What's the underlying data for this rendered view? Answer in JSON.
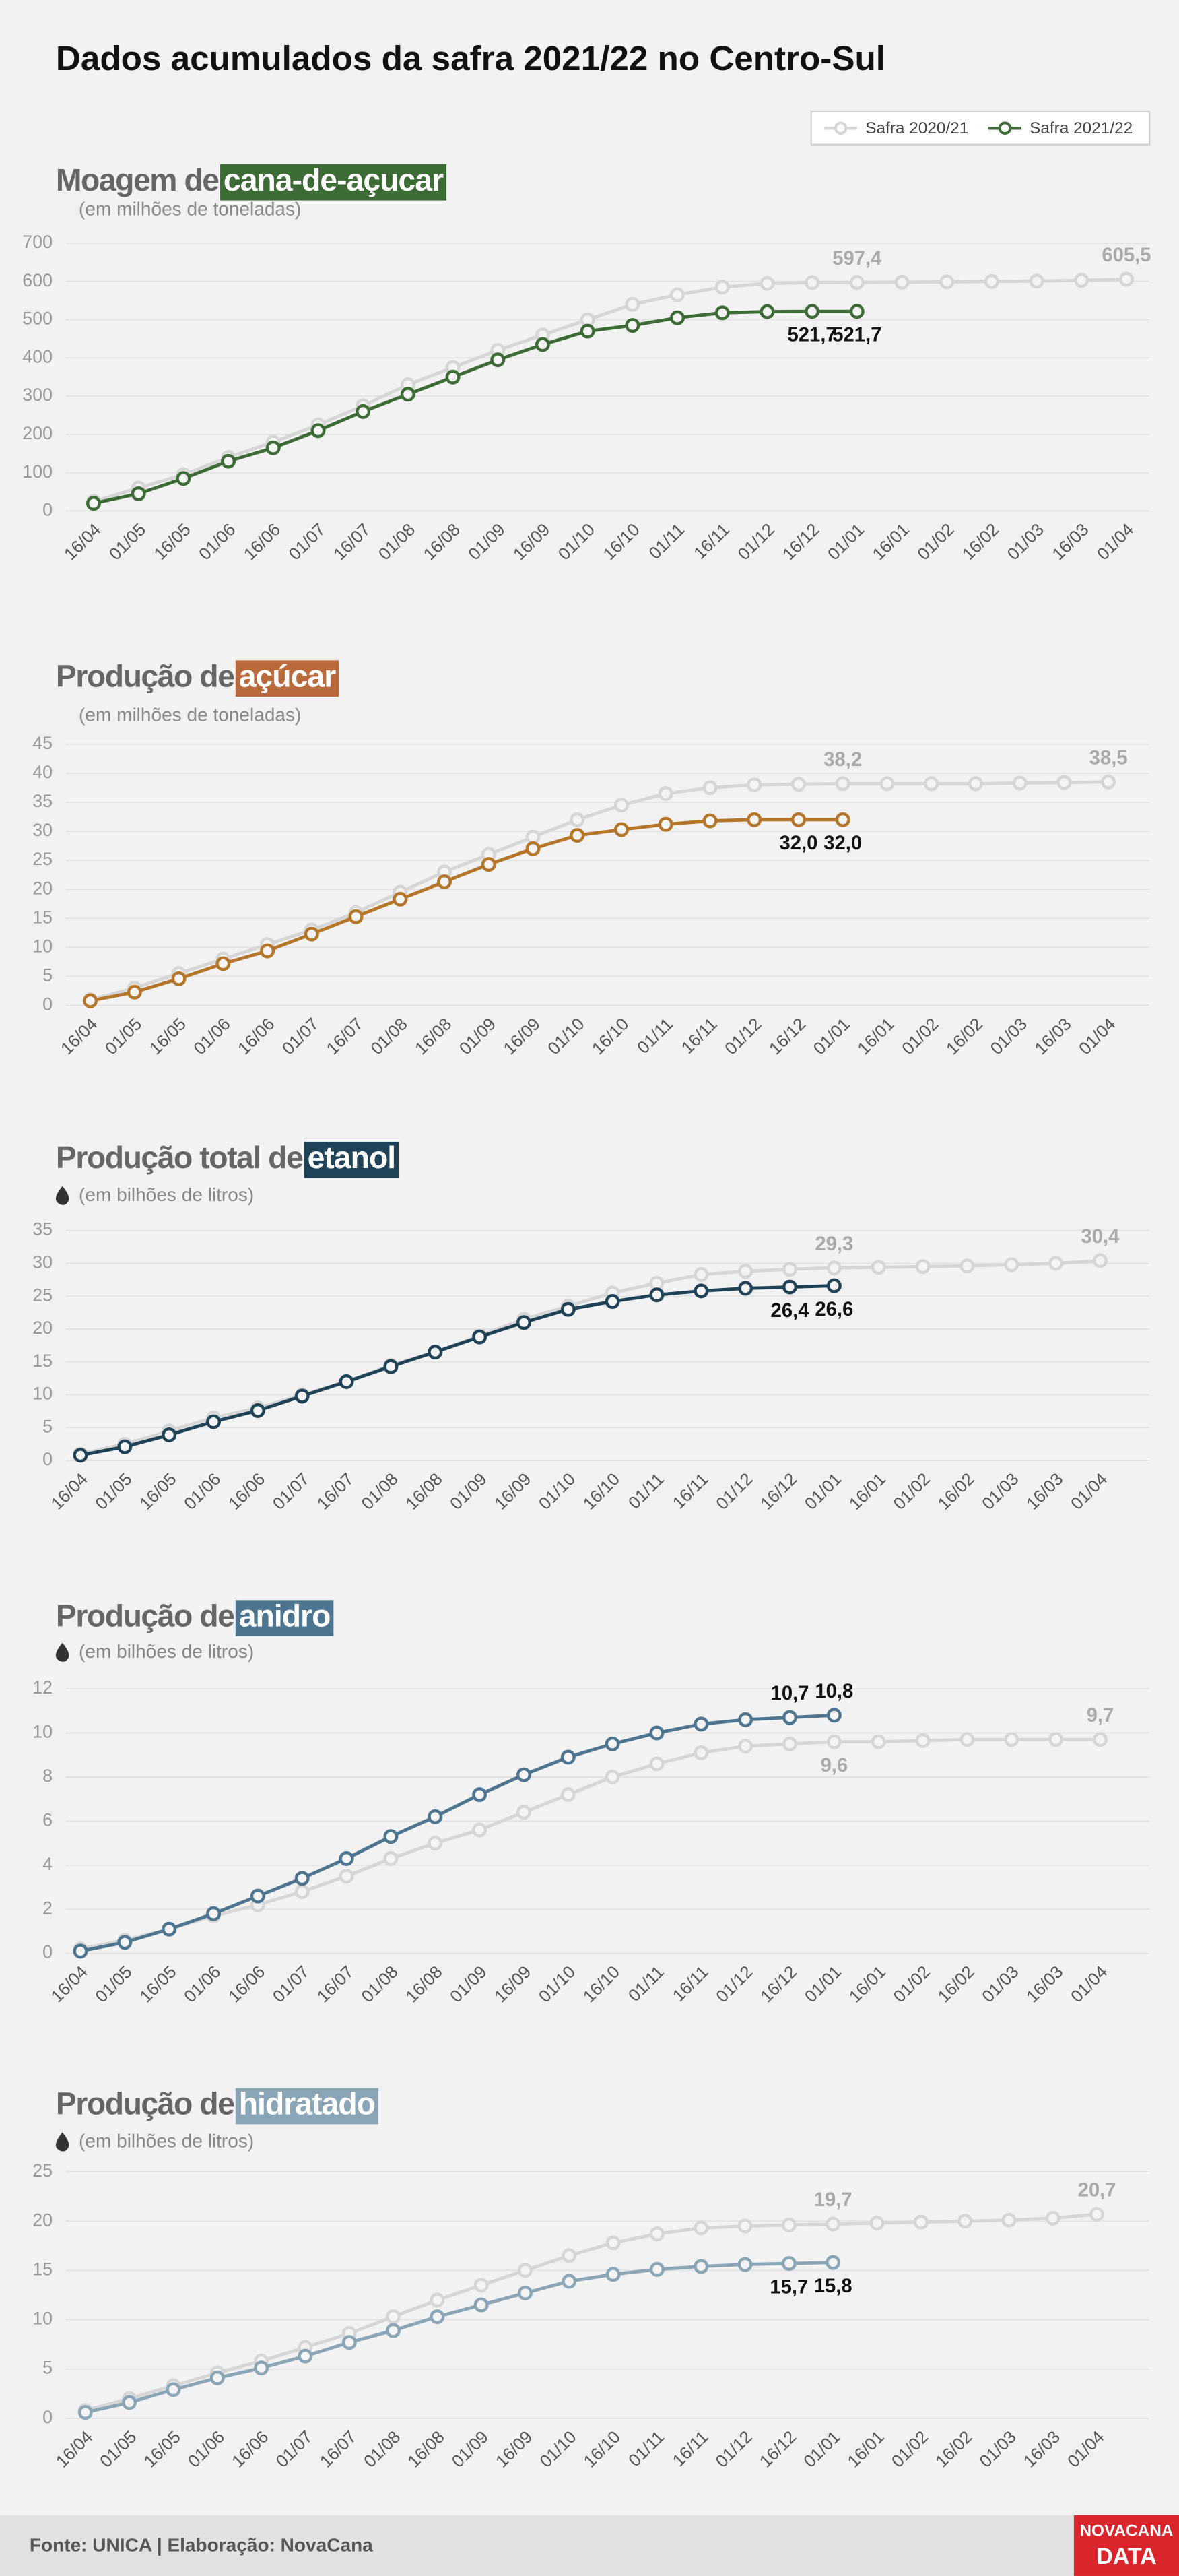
{
  "title": "Dados acumulados da safra 2021/22 no Centro-Sul",
  "footer": "Fonte: UNICA | Elaboração: NovaCana",
  "logo": [
    "NOVACANA",
    "DATA"
  ],
  "chart_data": [
    {
      "type": "line",
      "title": "Moagem de",
      "title_highlight": "cana-de-açucar",
      "highlight_color": "#3d6b35",
      "subtitle": "(em milhões de toneladas)",
      "categories": [
        "16/04",
        "01/05",
        "16/05",
        "01/06",
        "16/06",
        "01/07",
        "16/07",
        "01/08",
        "16/08",
        "01/09",
        "16/09",
        "01/10",
        "16/10",
        "01/11",
        "16/11",
        "01/12",
        "16/12",
        "01/01",
        "16/01",
        "01/02",
        "16/02",
        "01/03",
        "16/03",
        "01/04"
      ],
      "series": [
        {
          "name": "Safra 2020/21",
          "color": "#d6d6d6",
          "values": [
            25,
            60,
            95,
            140,
            180,
            225,
            275,
            330,
            375,
            420,
            460,
            500,
            540,
            565,
            585,
            595,
            597,
            597.4,
            598,
            599,
            600,
            601,
            603,
            605.5
          ],
          "value_labels": [
            null,
            null,
            null,
            null,
            null,
            null,
            null,
            null,
            null,
            null,
            null,
            null,
            null,
            null,
            null,
            null,
            null,
            "597,4",
            null,
            null,
            null,
            null,
            null,
            "605,5"
          ]
        },
        {
          "name": "Safra 2021/22",
          "color": "#3d6b35",
          "values": [
            20,
            45,
            85,
            130,
            165,
            210,
            260,
            305,
            350,
            395,
            435,
            470,
            485,
            505,
            518,
            521,
            521.7,
            521.7,
            null,
            null,
            null,
            null,
            null,
            null
          ],
          "value_labels": [
            null,
            null,
            null,
            null,
            null,
            null,
            null,
            null,
            null,
            null,
            null,
            null,
            null,
            null,
            null,
            null,
            "521,7",
            "521,7",
            null,
            null,
            null,
            null,
            null,
            null
          ]
        }
      ],
      "ylim": [
        0,
        700
      ],
      "yticks": [
        0,
        100,
        200,
        300,
        400,
        500,
        600,
        700
      ],
      "grid": true
    },
    {
      "type": "line",
      "title": "Produção de",
      "title_highlight": "açúcar",
      "highlight_color": "#b86a3c",
      "subtitle": "(em milhões de toneladas)",
      "categories": [
        "16/04",
        "01/05",
        "16/05",
        "01/06",
        "16/06",
        "01/07",
        "16/07",
        "01/08",
        "16/08",
        "01/09",
        "16/09",
        "01/10",
        "16/10",
        "01/11",
        "16/11",
        "01/12",
        "16/12",
        "01/01",
        "16/01",
        "01/02",
        "16/02",
        "01/03",
        "16/03",
        "01/04"
      ],
      "series": [
        {
          "color": "#d6d6d6",
          "values": [
            1,
            3,
            5.5,
            8,
            10.5,
            13,
            16,
            19.5,
            23,
            26,
            29,
            32,
            34.5,
            36.5,
            37.5,
            38,
            38.1,
            38.2,
            38.2,
            38.2,
            38.2,
            38.3,
            38.4,
            38.5
          ],
          "value_labels": [
            null,
            null,
            null,
            null,
            null,
            null,
            null,
            null,
            null,
            null,
            null,
            null,
            null,
            null,
            null,
            null,
            null,
            "38,2",
            null,
            null,
            null,
            null,
            null,
            "38,5"
          ]
        },
        {
          "color": "#b5762a",
          "values": [
            0.8,
            2.3,
            4.6,
            7.2,
            9.4,
            12.3,
            15.3,
            18.3,
            21.3,
            24.3,
            27,
            29.3,
            30.3,
            31.2,
            31.8,
            32,
            32,
            32,
            null,
            null,
            null,
            null,
            null,
            null
          ],
          "value_labels": [
            null,
            null,
            null,
            null,
            null,
            null,
            null,
            null,
            null,
            null,
            null,
            null,
            null,
            null,
            null,
            null,
            "32,0",
            "32,0",
            null,
            null,
            null,
            null,
            null,
            null
          ]
        }
      ],
      "ylim": [
        0,
        45
      ],
      "yticks": [
        0,
        5,
        10,
        15,
        20,
        25,
        30,
        35,
        40,
        45
      ],
      "grid": true
    },
    {
      "type": "line",
      "title": "Produção total de",
      "title_highlight": "etanol",
      "highlight_color": "#1f4256",
      "subtitle": "(em bilhões de litros)",
      "categories": [
        "16/04",
        "01/05",
        "16/05",
        "01/06",
        "16/06",
        "01/07",
        "16/07",
        "01/08",
        "16/08",
        "01/09",
        "16/09",
        "01/10",
        "16/10",
        "01/11",
        "16/11",
        "01/12",
        "16/12",
        "01/01",
        "16/01",
        "01/02",
        "16/02",
        "01/03",
        "16/03",
        "01/04"
      ],
      "series": [
        {
          "color": "#d6d6d6",
          "values": [
            1,
            2.5,
            4.5,
            6.5,
            8,
            10,
            12,
            14.5,
            16.5,
            19,
            21.5,
            23.5,
            25.5,
            27,
            28.3,
            28.8,
            29.1,
            29.3,
            29.4,
            29.5,
            29.6,
            29.8,
            30,
            30.4
          ],
          "value_labels": [
            null,
            null,
            null,
            null,
            null,
            null,
            null,
            null,
            null,
            null,
            null,
            null,
            null,
            null,
            null,
            null,
            null,
            "29,3",
            null,
            null,
            null,
            null,
            null,
            "30,4"
          ]
        },
        {
          "color": "#1f4256",
          "values": [
            0.8,
            2.1,
            3.9,
            5.9,
            7.6,
            9.8,
            12,
            14.3,
            16.5,
            18.8,
            21,
            23,
            24.2,
            25.2,
            25.8,
            26.2,
            26.4,
            26.6,
            null,
            null,
            null,
            null,
            null,
            null
          ],
          "value_labels": [
            null,
            null,
            null,
            null,
            null,
            null,
            null,
            null,
            null,
            null,
            null,
            null,
            null,
            null,
            null,
            null,
            "26,4",
            "26,6",
            null,
            null,
            null,
            null,
            null,
            null
          ]
        }
      ],
      "ylim": [
        0,
        35
      ],
      "yticks": [
        0,
        5,
        10,
        15,
        20,
        25,
        30,
        35
      ],
      "grid": true
    },
    {
      "type": "line",
      "title": "Produção de",
      "title_highlight": "anidro",
      "highlight_color": "#4d7590",
      "subtitle": "(em bilhões de litros)",
      "categories": [
        "16/04",
        "01/05",
        "16/05",
        "01/06",
        "16/06",
        "01/07",
        "16/07",
        "01/08",
        "16/08",
        "01/09",
        "16/09",
        "01/10",
        "16/10",
        "01/11",
        "16/11",
        "01/12",
        "16/12",
        "01/01",
        "16/01",
        "01/02",
        "16/02",
        "01/03",
        "16/03",
        "01/04"
      ],
      "series": [
        {
          "color": "#d6d6d6",
          "values": [
            0.2,
            0.6,
            1.1,
            1.7,
            2.2,
            2.8,
            3.5,
            4.3,
            5,
            5.6,
            6.4,
            7.2,
            8,
            8.6,
            9.1,
            9.4,
            9.5,
            9.6,
            9.6,
            9.65,
            9.7,
            9.7,
            9.7,
            9.7
          ],
          "value_labels": [
            null,
            null,
            null,
            null,
            null,
            null,
            null,
            null,
            null,
            null,
            null,
            null,
            null,
            null,
            null,
            null,
            null,
            "9,6",
            null,
            null,
            null,
            null,
            null,
            "9,7"
          ]
        },
        {
          "color": "#4d7590",
          "values": [
            0.1,
            0.5,
            1.1,
            1.8,
            2.6,
            3.4,
            4.3,
            5.3,
            6.2,
            7.2,
            8.1,
            8.9,
            9.5,
            10,
            10.4,
            10.6,
            10.7,
            10.8,
            null,
            null,
            null,
            null,
            null,
            null
          ],
          "value_labels": [
            null,
            null,
            null,
            null,
            null,
            null,
            null,
            null,
            null,
            null,
            null,
            null,
            null,
            null,
            null,
            null,
            "10,7",
            "10,8",
            null,
            null,
            null,
            null,
            null,
            null
          ]
        }
      ],
      "ylim": [
        0,
        12
      ],
      "yticks": [
        0,
        2,
        4,
        6,
        8,
        10,
        12
      ],
      "grid": true
    },
    {
      "type": "line",
      "title": "Produção de",
      "title_highlight": "hidratado",
      "highlight_color": "#8aa5b5",
      "subtitle": "(em bilhões de litros)",
      "categories": [
        "16/04",
        "01/05",
        "16/05",
        "01/06",
        "16/06",
        "01/07",
        "16/07",
        "01/08",
        "16/08",
        "01/09",
        "16/09",
        "01/10",
        "16/10",
        "01/11",
        "16/11",
        "01/12",
        "16/12",
        "01/01",
        "16/01",
        "01/02",
        "16/02",
        "01/03",
        "16/03",
        "01/04"
      ],
      "series": [
        {
          "color": "#d6d6d6",
          "values": [
            0.8,
            2,
            3.3,
            4.6,
            5.8,
            7.2,
            8.6,
            10.3,
            12,
            13.5,
            15,
            16.5,
            17.8,
            18.7,
            19.3,
            19.5,
            19.6,
            19.7,
            19.8,
            19.9,
            20,
            20.1,
            20.3,
            20.7
          ],
          "value_labels": [
            null,
            null,
            null,
            null,
            null,
            null,
            null,
            null,
            null,
            null,
            null,
            null,
            null,
            null,
            null,
            null,
            null,
            "19,7",
            null,
            null,
            null,
            null,
            null,
            "20,7"
          ]
        },
        {
          "color": "#8aa5b5",
          "values": [
            0.6,
            1.6,
            2.9,
            4.1,
            5.1,
            6.3,
            7.7,
            8.9,
            10.3,
            11.5,
            12.7,
            13.9,
            14.6,
            15.1,
            15.4,
            15.6,
            15.7,
            15.8,
            null,
            null,
            null,
            null,
            null,
            null
          ],
          "value_labels": [
            null,
            null,
            null,
            null,
            null,
            null,
            null,
            null,
            null,
            null,
            null,
            null,
            null,
            null,
            null,
            null,
            "15,7",
            "15,8",
            null,
            null,
            null,
            null,
            null,
            null
          ]
        }
      ],
      "ylim": [
        0,
        25
      ],
      "yticks": [
        0,
        5,
        10,
        15,
        20,
        25
      ],
      "grid": true
    }
  ]
}
